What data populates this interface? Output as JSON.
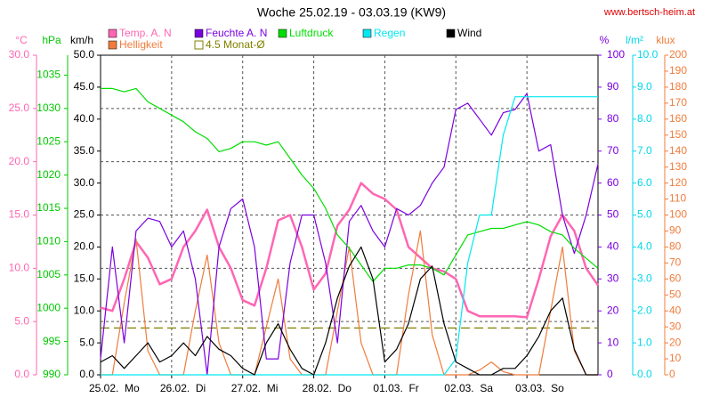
{
  "chart_data": {
    "type": "line",
    "title": "Woche 25.02.19 - 03.03.19 (KW9)",
    "source": "www.bertsch-heim.at",
    "xlim": [
      0,
      168
    ],
    "xticks": [
      {
        "value": 0,
        "label": "25.02.  Mo"
      },
      {
        "value": 24,
        "label": "26.02.  Di"
      },
      {
        "value": 48,
        "label": "27.02.  Mi"
      },
      {
        "value": 72,
        "label": "28.02.  Do"
      },
      {
        "value": 96,
        "label": "01.03.  Fr"
      },
      {
        "value": 120,
        "label": "02.03.  Sa"
      },
      {
        "value": 144,
        "label": "03.03.  So"
      }
    ],
    "grid": true,
    "axes": [
      {
        "label": "°C",
        "color": "#ff66b3",
        "ylim": [
          0,
          30
        ],
        "yticks": [
          {
            "value": 0,
            "label": "0.0"
          },
          {
            "value": 5,
            "label": "5.0"
          },
          {
            "value": 10,
            "label": "10.0"
          },
          {
            "value": 15,
            "label": "15.0"
          },
          {
            "value": 20,
            "label": "20.0"
          },
          {
            "value": 25,
            "label": "25.0"
          },
          {
            "value": 30,
            "label": "30.0"
          }
        ]
      },
      {
        "label": "hPa",
        "color": "#00c800",
        "ylim": [
          990,
          1038
        ],
        "yticks": [
          990,
          995,
          1000,
          1005,
          1010,
          1015,
          1020,
          1025,
          1030,
          1035
        ]
      },
      {
        "label": "km/h",
        "color": "#000000",
        "ylim": [
          0,
          50
        ],
        "yticks": [
          {
            "value": 0,
            "label": "0.0"
          },
          {
            "value": 5,
            "label": "5.0"
          },
          {
            "value": 10,
            "label": "10.0"
          },
          {
            "value": 15,
            "label": "15.0"
          },
          {
            "value": 20,
            "label": "20.0"
          },
          {
            "value": 25,
            "label": "25.0"
          },
          {
            "value": 30,
            "label": "30.0"
          },
          {
            "value": 35,
            "label": "35.0"
          },
          {
            "value": 40,
            "label": "40.0"
          },
          {
            "value": 45,
            "label": "45.0"
          },
          {
            "value": 50,
            "label": "50.0"
          }
        ]
      },
      {
        "label": "%",
        "color": "#7a00e0",
        "ylim": [
          0,
          100
        ],
        "yticks": [
          0,
          10,
          20,
          30,
          40,
          50,
          60,
          70,
          80,
          90,
          100
        ]
      },
      {
        "label": "l/m²",
        "color": "#00d8e8",
        "ylim": [
          0,
          10
        ],
        "yticks": [
          {
            "value": 0,
            "label": "0.0"
          },
          {
            "value": 1,
            "label": "1.0"
          },
          {
            "value": 2,
            "label": "2.0"
          },
          {
            "value": 3,
            "label": "3.0"
          },
          {
            "value": 4,
            "label": "4.0"
          },
          {
            "value": 5,
            "label": "5.0"
          },
          {
            "value": 6,
            "label": "6.0"
          },
          {
            "value": 7,
            "label": "7.0"
          },
          {
            "value": 8,
            "label": "8.0"
          },
          {
            "value": 9,
            "label": "9.0"
          },
          {
            "value": 10,
            "label": "10.0"
          }
        ]
      },
      {
        "label": "klux",
        "color": "#f07c3c",
        "ylim": [
          0,
          200
        ],
        "yticks": [
          0,
          10,
          20,
          30,
          40,
          50,
          60,
          70,
          80,
          90,
          100,
          110,
          120,
          130,
          140,
          150,
          160,
          170,
          180,
          190,
          200
        ]
      }
    ],
    "x": [
      0,
      4,
      8,
      12,
      16,
      20,
      24,
      28,
      32,
      36,
      40,
      44,
      48,
      52,
      56,
      60,
      64,
      68,
      72,
      76,
      80,
      84,
      88,
      92,
      96,
      100,
      104,
      108,
      112,
      116,
      120,
      124,
      128,
      132,
      136,
      140,
      144,
      148,
      152,
      156,
      160,
      164,
      168
    ],
    "series": [
      {
        "name": "Temp. A. N",
        "color": "#ff66b3",
        "axis": 0,
        "values": [
          6.3,
          6,
          9,
          12.5,
          11,
          8.5,
          9,
          12,
          13.5,
          15.5,
          12,
          10,
          7,
          6.5,
          10,
          14.5,
          15,
          12,
          8,
          9.5,
          14,
          15.5,
          18,
          17,
          16.5,
          15.5,
          12,
          11,
          10,
          9.7,
          9,
          6,
          5.5,
          5.5,
          5.5,
          5.5,
          5.4,
          9,
          13,
          15,
          13.5,
          10,
          8.4
        ]
      },
      {
        "name": "Helligkeit",
        "color": "#f07c3c",
        "axis": 5,
        "values": [
          0,
          0,
          45,
          85,
          15,
          0,
          0,
          0,
          40,
          75,
          20,
          0,
          0,
          0,
          30,
          60,
          10,
          0,
          0,
          0,
          40,
          80,
          20,
          0,
          0,
          0,
          50,
          90,
          25,
          0,
          0,
          0,
          3,
          8,
          2,
          0,
          0,
          0,
          40,
          80,
          15,
          0,
          0
        ]
      },
      {
        "name": "Feuchte A. N",
        "color": "#7a00e0",
        "axis": 3,
        "values": [
          5,
          40,
          10,
          45,
          49,
          48,
          40,
          45,
          30,
          0,
          40,
          52,
          55,
          40,
          5,
          5,
          35,
          50,
          50,
          35,
          10,
          48,
          53,
          45,
          40,
          52,
          50,
          53,
          60,
          65,
          83,
          85,
          80,
          75,
          82,
          83,
          88,
          70,
          72,
          50,
          38,
          50,
          66
        ]
      },
      {
        "name": "Luftdruck",
        "color": "#00dd00",
        "axis": 1,
        "values": [
          1033,
          1033,
          1032.5,
          1033,
          1031,
          1030,
          1029,
          1028,
          1026.5,
          1025.5,
          1023.5,
          1024,
          1025,
          1025,
          1024.5,
          1025,
          1022.5,
          1020,
          1018,
          1015,
          1011,
          1009,
          1006.5,
          1004,
          1006,
          1006,
          1006.5,
          1006.5,
          1006,
          1005,
          1008,
          1011,
          1011.5,
          1012,
          1012,
          1012.5,
          1013,
          1012.5,
          1011.5,
          1011,
          1009,
          1007.5,
          1006
        ]
      },
      {
        "name": "Regen",
        "color": "#00e8f0",
        "axis": 4,
        "values": [
          0,
          0,
          0,
          0,
          0,
          0,
          0,
          0,
          0,
          0,
          0,
          0,
          0,
          0,
          0,
          0,
          0,
          0,
          0,
          0,
          0,
          0,
          0,
          0,
          0,
          0,
          0,
          0,
          0,
          0,
          0.5,
          3.5,
          5,
          5,
          7.5,
          8.7,
          8.7,
          8.7,
          8.7,
          8.7,
          8.7,
          8.7,
          8.7
        ]
      },
      {
        "name": "Wind",
        "color": "#000000",
        "axis": 2,
        "values": [
          2,
          3,
          1,
          3,
          5,
          2,
          3,
          5,
          3,
          6,
          4,
          3,
          1,
          0,
          5,
          8,
          4,
          1,
          0,
          5,
          12,
          17,
          20,
          15,
          2,
          4,
          8,
          15,
          17,
          8,
          2,
          1,
          0,
          0,
          1,
          1,
          3,
          6,
          10,
          12,
          4,
          0,
          0
        ]
      }
    ],
    "reference": {
      "name": "4.5 Monat-Ø",
      "color": "#808000",
      "axis": 0,
      "value": 4.4
    }
  }
}
